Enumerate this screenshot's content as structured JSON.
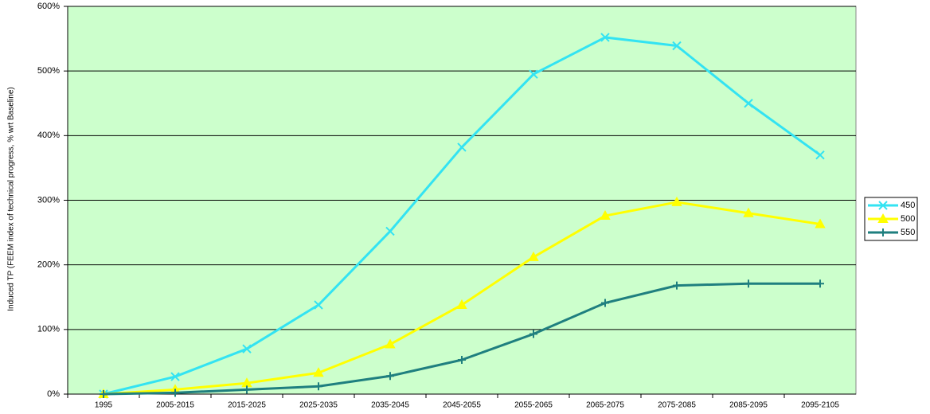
{
  "chart_data": {
    "type": "line",
    "y_label": "Induced TP (FEEM index of technical progress, % wrt Baseline)",
    "categories": [
      "1995",
      "2005-2015",
      "2015-2025",
      "2025-2035",
      "2035-2045",
      "2045-2055",
      "2055-2065",
      "2065-2075",
      "2075-2085",
      "2085-2095",
      "2095-2105"
    ],
    "series": [
      {
        "name": "450",
        "color": "#33e3f2",
        "marker": "x",
        "values": [
          0,
          27,
          70,
          138,
          252,
          382,
          495,
          552,
          539,
          450,
          370
        ]
      },
      {
        "name": "500",
        "color": "#ffff00",
        "marker": "triangle",
        "values": [
          0,
          7,
          17,
          33,
          77,
          138,
          212,
          276,
          297,
          280,
          263
        ]
      },
      {
        "name": "550",
        "color": "#1f7f7f",
        "marker": "plus",
        "values": [
          0,
          2,
          7,
          12,
          28,
          53,
          93,
          141,
          168,
          171,
          171
        ]
      }
    ],
    "ylim": [
      0,
      600
    ],
    "yticks": [
      {
        "value": 0,
        "label": "0%"
      },
      {
        "value": 100,
        "label": "100%"
      },
      {
        "value": 200,
        "label": "200%"
      },
      {
        "value": 300,
        "label": "300%"
      },
      {
        "value": 400,
        "label": "400%"
      },
      {
        "value": 500,
        "label": "500%"
      },
      {
        "value": 600,
        "label": "600%"
      }
    ],
    "grid": true,
    "background": "#ccffcc",
    "legend": "right"
  }
}
